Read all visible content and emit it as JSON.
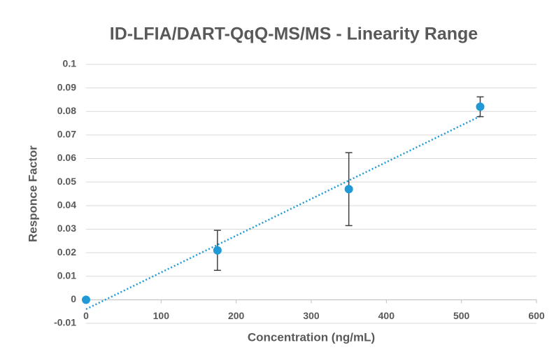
{
  "chart_data": {
    "type": "scatter",
    "title": "ID-LFIA/DART-QqQ-MS/MS - Linearity Range",
    "x_label": "Concentration (ng/mL)",
    "y_label": "Responce Factor",
    "x": [
      0,
      175,
      350,
      525
    ],
    "values": [
      0,
      0.021,
      0.047,
      0.082
    ],
    "errors": [
      null,
      0.0085,
      0.0155,
      0.0042
    ],
    "color": "#1f9ad6",
    "error_color": "#404040",
    "trendline": {
      "x": [
        0,
        525
      ],
      "values": [
        -0.004,
        0.078
      ],
      "color": "#1f9ad6"
    },
    "xlim": [
      0,
      600
    ],
    "xticks": [
      0,
      100,
      200,
      300,
      400,
      500,
      600
    ],
    "ylim": [
      -0.01,
      0.1
    ],
    "yticks": [
      -0.01,
      0,
      0.01,
      0.02,
      0.03,
      0.04,
      0.05,
      0.06,
      0.07,
      0.08,
      0.09,
      0.1
    ],
    "grid": true
  }
}
